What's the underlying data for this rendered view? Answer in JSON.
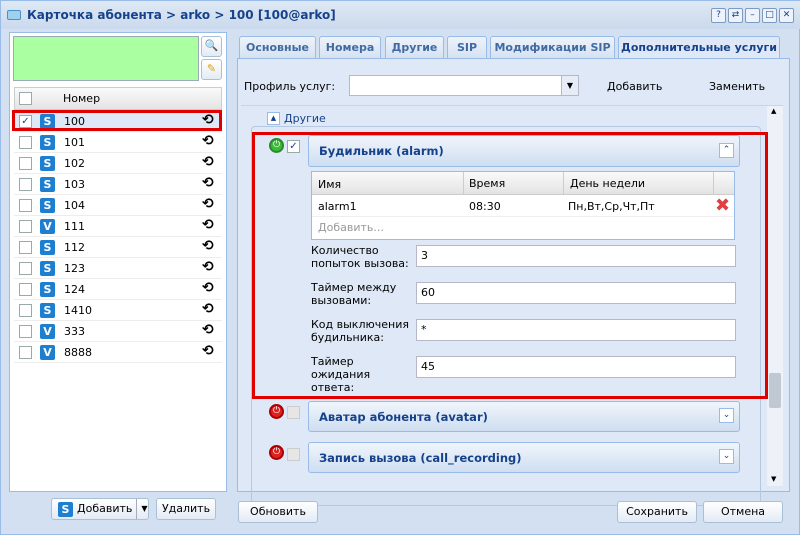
{
  "window": {
    "title": "Карточка абонента > arko > 100 [100@arko]",
    "tools": [
      "?",
      "⇄",
      "–",
      "□",
      "✕"
    ]
  },
  "left": {
    "header": "Номер",
    "rows": [
      {
        "number": "100",
        "type": "S",
        "checked": true
      },
      {
        "number": "101",
        "type": "S"
      },
      {
        "number": "102",
        "type": "S"
      },
      {
        "number": "103",
        "type": "S"
      },
      {
        "number": "104",
        "type": "S"
      },
      {
        "number": "111",
        "type": "V"
      },
      {
        "number": "112",
        "type": "S"
      },
      {
        "number": "123",
        "type": "S"
      },
      {
        "number": "124",
        "type": "S"
      },
      {
        "number": "1410",
        "type": "S"
      },
      {
        "number": "333",
        "type": "V"
      },
      {
        "number": "8888",
        "type": "V"
      }
    ],
    "add_label": "Добавить",
    "delete_label": "Удалить"
  },
  "tabs": [
    "Основные",
    "Номера",
    "Другие",
    "SIP",
    "Модификации SIP",
    "Дополнительные услуги"
  ],
  "profile": {
    "label": "Профиль услуг:",
    "value": "",
    "add": "Добавить",
    "replace": "Заменить"
  },
  "group": "Другие",
  "alarm": {
    "title": "Будильник (alarm)",
    "columns": [
      "Имя",
      "Время",
      "День недели"
    ],
    "row": [
      "alarm1",
      "08:30",
      "Пн,Вт,Ср,Чт,Пт"
    ],
    "add_placeholder": "Добавить...",
    "fields": [
      {
        "label": "Количество попыток вызова:",
        "value": "3"
      },
      {
        "label": "Таймер между вызовами:",
        "value": "60"
      },
      {
        "label": "Код выключения будильника:",
        "value": "*"
      },
      {
        "label": "Таймер ожидания ответа:",
        "value": "45"
      }
    ]
  },
  "avatar": {
    "title": "Аватар абонента (avatar)"
  },
  "recording": {
    "title": "Запись вызова (call_recording)"
  },
  "footer": {
    "refresh": "Обновить",
    "save": "Сохранить",
    "cancel": "Отмена"
  },
  "colors": {
    "highlight": "#e00000",
    "accent": "#15428b",
    "search_area": "#aaffa0"
  }
}
